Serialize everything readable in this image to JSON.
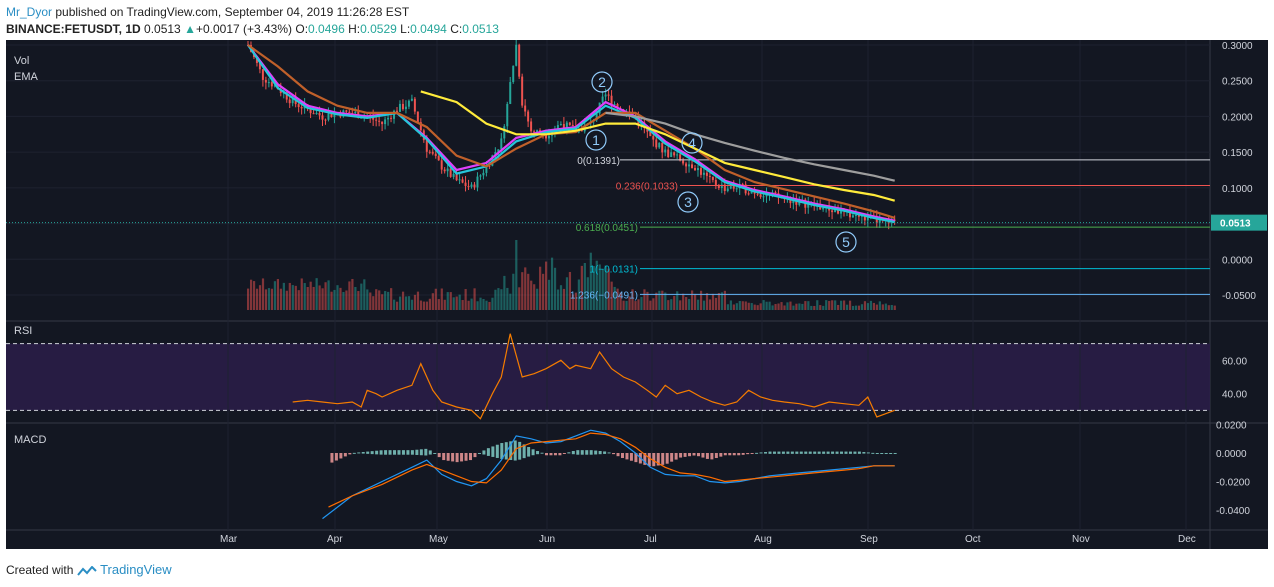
{
  "header": {
    "author": "Mr_Dyor",
    "published_text": "published on TradingView.com, September 04, 2019 11:26:28 EST",
    "symbol": "BINANCE:FETUSDT, 1D",
    "last": "0.0513",
    "change": "+0.0017 (+3.43%)",
    "open_label": "O:",
    "open": "0.0496",
    "high_label": "H:",
    "high": "0.0529",
    "low_label": "L:",
    "low": "0.0494",
    "close_label": "C:",
    "close": "0.0513"
  },
  "footer": {
    "created_with": "Created with",
    "brand": "TradingView"
  },
  "colors": {
    "background": "#131722",
    "up": "#26a69a",
    "down": "#ef5350",
    "ema_fast": "#e040fb",
    "ema_mid": "#26c6da",
    "ema_slow": "#c0602a",
    "ema_yellow": "#ffeb3b",
    "ema_grey": "#9e9e9e",
    "rsi": "#f57c00",
    "macd": "#2196f3",
    "signal": "#ff6d00"
  },
  "chart_data": [
    {
      "type": "line",
      "panel": "price",
      "labels": [
        "Vol",
        "EMA"
      ],
      "y_ticks": [
        "0.3000",
        "0.2500",
        "0.2000",
        "0.1500",
        "0.1000",
        "0.0500",
        "0.0000",
        "-0.0500"
      ],
      "y_range": [
        -0.09,
        0.3
      ],
      "x_ticks": [
        "Mar",
        "Apr",
        "May",
        "Jun",
        "Jul",
        "Aug",
        "Sep",
        "Oct",
        "Nov",
        "Dec"
      ],
      "last_price_label": "0.0513",
      "close": [
        [
          0,
          0.3
        ],
        [
          5,
          0.255
        ],
        [
          10,
          0.24
        ],
        [
          15,
          0.22
        ],
        [
          20,
          0.21
        ],
        [
          25,
          0.2
        ],
        [
          30,
          0.205
        ],
        [
          35,
          0.205
        ],
        [
          40,
          0.2
        ],
        [
          45,
          0.19
        ],
        [
          50,
          0.21
        ],
        [
          55,
          0.22
        ],
        [
          60,
          0.155
        ],
        [
          65,
          0.13
        ],
        [
          70,
          0.11
        ],
        [
          75,
          0.1
        ],
        [
          80,
          0.13
        ],
        [
          85,
          0.165
        ],
        [
          90,
          0.3
        ],
        [
          92,
          0.22
        ],
        [
          95,
          0.18
        ],
        [
          100,
          0.175
        ],
        [
          105,
          0.19
        ],
        [
          110,
          0.18
        ],
        [
          115,
          0.19
        ],
        [
          120,
          0.23
        ],
        [
          125,
          0.21
        ],
        [
          130,
          0.2
        ],
        [
          135,
          0.17
        ],
        [
          140,
          0.15
        ],
        [
          145,
          0.14
        ],
        [
          150,
          0.13
        ],
        [
          155,
          0.11
        ],
        [
          160,
          0.1
        ],
        [
          165,
          0.1
        ],
        [
          170,
          0.095
        ],
        [
          175,
          0.09
        ],
        [
          180,
          0.085
        ],
        [
          185,
          0.08
        ],
        [
          190,
          0.075
        ],
        [
          195,
          0.07
        ],
        [
          200,
          0.065
        ],
        [
          205,
          0.06
        ],
        [
          210,
          0.055
        ],
        [
          215,
          0.05
        ],
        [
          217,
          0.0513
        ]
      ],
      "series": [
        {
          "name": "EMA",
          "color": "#e040fb",
          "values": [
            [
              0,
              0.3
            ],
            [
              10,
              0.245
            ],
            [
              20,
              0.215
            ],
            [
              30,
              0.205
            ],
            [
              40,
              0.2
            ],
            [
              50,
              0.205
            ],
            [
              60,
              0.17
            ],
            [
              70,
              0.125
            ],
            [
              80,
              0.135
            ],
            [
              90,
              0.17
            ],
            [
              100,
              0.18
            ],
            [
              110,
              0.185
            ],
            [
              120,
              0.22
            ],
            [
              130,
              0.2
            ],
            [
              140,
              0.165
            ],
            [
              150,
              0.14
            ],
            [
              160,
              0.11
            ],
            [
              170,
              0.097
            ],
            [
              180,
              0.088
            ],
            [
              190,
              0.078
            ],
            [
              200,
              0.07
            ],
            [
              210,
              0.06
            ],
            [
              217,
              0.054
            ]
          ]
        },
        {
          "name": "EMA",
          "color": "#26c6da",
          "values": [
            [
              0,
              0.3
            ],
            [
              10,
              0.24
            ],
            [
              20,
              0.212
            ],
            [
              30,
              0.203
            ],
            [
              40,
              0.198
            ],
            [
              50,
              0.205
            ],
            [
              60,
              0.168
            ],
            [
              70,
              0.12
            ],
            [
              80,
              0.13
            ],
            [
              90,
              0.165
            ],
            [
              100,
              0.178
            ],
            [
              110,
              0.183
            ],
            [
              120,
              0.215
            ],
            [
              130,
              0.198
            ],
            [
              140,
              0.162
            ],
            [
              150,
              0.137
            ],
            [
              160,
              0.108
            ],
            [
              170,
              0.095
            ],
            [
              180,
              0.086
            ],
            [
              190,
              0.076
            ],
            [
              200,
              0.068
            ],
            [
              210,
              0.058
            ],
            [
              217,
              0.052
            ]
          ]
        },
        {
          "name": "EMA",
          "color": "#c0602a",
          "values": [
            [
              0,
              0.3
            ],
            [
              10,
              0.27
            ],
            [
              20,
              0.235
            ],
            [
              30,
              0.215
            ],
            [
              40,
              0.205
            ],
            [
              50,
              0.205
            ],
            [
              60,
              0.185
            ],
            [
              70,
              0.145
            ],
            [
              80,
              0.13
            ],
            [
              90,
              0.155
            ],
            [
              100,
              0.175
            ],
            [
              110,
              0.178
            ],
            [
              120,
              0.205
            ],
            [
              130,
              0.205
            ],
            [
              140,
              0.18
            ],
            [
              150,
              0.155
            ],
            [
              160,
              0.125
            ],
            [
              170,
              0.108
            ],
            [
              180,
              0.098
            ],
            [
              190,
              0.088
            ],
            [
              200,
              0.078
            ],
            [
              210,
              0.067
            ],
            [
              217,
              0.058
            ]
          ]
        },
        {
          "name": "EMA",
          "color": "#ffeb3b",
          "values": [
            [
              58,
              0.235
            ],
            [
              70,
              0.22
            ],
            [
              80,
              0.19
            ],
            [
              90,
              0.175
            ],
            [
              100,
              0.175
            ],
            [
              110,
              0.18
            ],
            [
              120,
              0.19
            ],
            [
              130,
              0.19
            ],
            [
              140,
              0.175
            ],
            [
              150,
              0.155
            ],
            [
              160,
              0.135
            ],
            [
              170,
              0.125
            ],
            [
              180,
              0.115
            ],
            [
              190,
              0.105
            ],
            [
              200,
              0.097
            ],
            [
              210,
              0.09
            ],
            [
              217,
              0.082
            ]
          ]
        },
        {
          "name": "EMA",
          "color": "#9e9e9e",
          "values": [
            [
              120,
              0.205
            ],
            [
              130,
              0.2
            ],
            [
              140,
              0.19
            ],
            [
              150,
              0.175
            ],
            [
              160,
              0.163
            ],
            [
              170,
              0.152
            ],
            [
              180,
              0.142
            ],
            [
              190,
              0.133
            ],
            [
              200,
              0.125
            ],
            [
              210,
              0.117
            ],
            [
              217,
              0.11
            ]
          ]
        }
      ],
      "fib_levels": [
        {
          "label": "0(0.1391)",
          "value": 0.1391,
          "color": "#d1d4dc"
        },
        {
          "label": "0.236(0.1033)",
          "value": 0.1033,
          "color": "#ef5350"
        },
        {
          "label": "0.618(0.0451)",
          "value": 0.0451,
          "color": "#4caf50"
        },
        {
          "label": "1(−0.0131)",
          "value": -0.0131,
          "color": "#00bcd4"
        },
        {
          "label": "1.236(−0.0491)",
          "value": -0.0491,
          "color": "#64b5f6"
        }
      ],
      "wave_labels": [
        "1",
        "2",
        "3",
        "4",
        "5"
      ]
    },
    {
      "type": "line",
      "panel": "RSI",
      "title": "RSI",
      "y_ticks": [
        "60.00",
        "40.00"
      ],
      "y_range": [
        20,
        80
      ],
      "levels": [
        70,
        30
      ],
      "values": [
        [
          15,
          35
        ],
        [
          20,
          36
        ],
        [
          25,
          35
        ],
        [
          30,
          34
        ],
        [
          35,
          35
        ],
        [
          38,
          32
        ],
        [
          40,
          42
        ],
        [
          43,
          40
        ],
        [
          45,
          38
        ],
        [
          50,
          42
        ],
        [
          55,
          45
        ],
        [
          58,
          58
        ],
        [
          62,
          42
        ],
        [
          65,
          35
        ],
        [
          70,
          32
        ],
        [
          75,
          30
        ],
        [
          78,
          25
        ],
        [
          82,
          40
        ],
        [
          85,
          50
        ],
        [
          88,
          76
        ],
        [
          92,
          50
        ],
        [
          96,
          52
        ],
        [
          100,
          55
        ],
        [
          105,
          60
        ],
        [
          108,
          55
        ],
        [
          110,
          57
        ],
        [
          115,
          55
        ],
        [
          118,
          65
        ],
        [
          122,
          55
        ],
        [
          126,
          50
        ],
        [
          130,
          47
        ],
        [
          134,
          42
        ],
        [
          137,
          38
        ],
        [
          140,
          45
        ],
        [
          144,
          40
        ],
        [
          148,
          42
        ],
        [
          152,
          38
        ],
        [
          156,
          35
        ],
        [
          160,
          33
        ],
        [
          164,
          35
        ],
        [
          168,
          42
        ],
        [
          172,
          38
        ],
        [
          176,
          36
        ],
        [
          180,
          35
        ],
        [
          185,
          34
        ],
        [
          190,
          32
        ],
        [
          195,
          35
        ],
        [
          200,
          34
        ],
        [
          205,
          33
        ],
        [
          208,
          38
        ],
        [
          211,
          26
        ],
        [
          214,
          28
        ],
        [
          217,
          30
        ]
      ]
    },
    {
      "type": "bar",
      "panel": "MACD",
      "title": "MACD",
      "y_ticks": [
        "0.0200",
        "0.0000",
        "-0.0200",
        "-0.0400"
      ],
      "y_range": [
        -0.05,
        0.025
      ],
      "series": [
        {
          "name": "MACD",
          "color": "#2196f3",
          "values": [
            [
              25,
              -0.046
            ],
            [
              35,
              -0.03
            ],
            [
              45,
              -0.02
            ],
            [
              55,
              -0.01
            ],
            [
              60,
              -0.005
            ],
            [
              65,
              -0.015
            ],
            [
              70,
              -0.02
            ],
            [
              75,
              -0.023
            ],
            [
              80,
              -0.018
            ],
            [
              85,
              -0.005
            ],
            [
              90,
              0.012
            ],
            [
              95,
              0.01
            ],
            [
              100,
              0.007
            ],
            [
              105,
              0.008
            ],
            [
              110,
              0.012
            ],
            [
              115,
              0.016
            ],
            [
              120,
              0.014
            ],
            [
              125,
              0.008
            ],
            [
              130,
              0.0
            ],
            [
              135,
              -0.01
            ],
            [
              140,
              -0.015
            ],
            [
              145,
              -0.016
            ],
            [
              150,
              -0.016
            ],
            [
              155,
              -0.02
            ],
            [
              160,
              -0.021
            ],
            [
              165,
              -0.02
            ],
            [
              170,
              -0.018
            ],
            [
              175,
              -0.016
            ],
            [
              180,
              -0.015
            ],
            [
              185,
              -0.014
            ],
            [
              190,
              -0.013
            ],
            [
              195,
              -0.012
            ],
            [
              200,
              -0.011
            ],
            [
              205,
              -0.01
            ],
            [
              210,
              -0.009
            ],
            [
              217,
              -0.009
            ]
          ]
        },
        {
          "name": "Signal",
          "color": "#ff6d00",
          "values": [
            [
              27,
              -0.038
            ],
            [
              35,
              -0.03
            ],
            [
              45,
              -0.022
            ],
            [
              55,
              -0.012
            ],
            [
              60,
              -0.008
            ],
            [
              65,
              -0.012
            ],
            [
              70,
              -0.016
            ],
            [
              75,
              -0.02
            ],
            [
              80,
              -0.021
            ],
            [
              85,
              -0.012
            ],
            [
              90,
              0.003
            ],
            [
              95,
              0.007
            ],
            [
              100,
              0.008
            ],
            [
              105,
              0.009
            ],
            [
              110,
              0.01
            ],
            [
              115,
              0.014
            ],
            [
              120,
              0.013
            ],
            [
              125,
              0.01
            ],
            [
              130,
              0.004
            ],
            [
              135,
              -0.004
            ],
            [
              140,
              -0.01
            ],
            [
              145,
              -0.014
            ],
            [
              150,
              -0.015
            ],
            [
              155,
              -0.017
            ],
            [
              160,
              -0.02
            ],
            [
              165,
              -0.019
            ],
            [
              170,
              -0.018
            ],
            [
              175,
              -0.017
            ],
            [
              180,
              -0.016
            ],
            [
              185,
              -0.015
            ],
            [
              190,
              -0.014
            ],
            [
              195,
              -0.013
            ],
            [
              200,
              -0.012
            ],
            [
              205,
              -0.011
            ],
            [
              210,
              -0.009
            ],
            [
              217,
              -0.009
            ]
          ]
        }
      ]
    }
  ]
}
